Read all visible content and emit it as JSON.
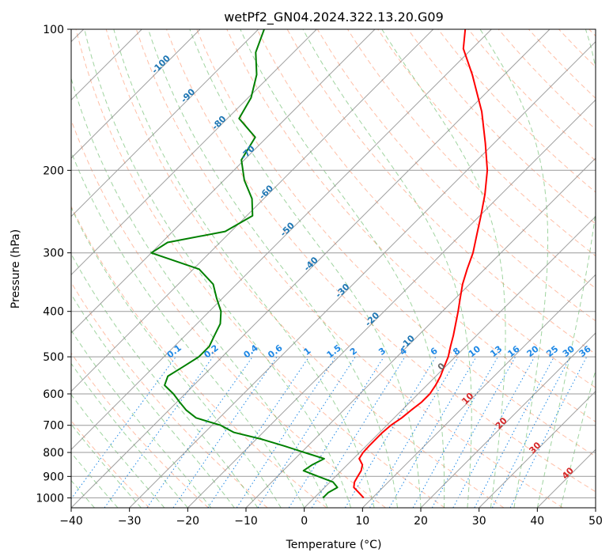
{
  "chart_data": {
    "type": "line",
    "subtype": "skew-T log-P diagram",
    "title": "wetPf2_GN04.2024.322.13.20.G09",
    "xlabel": "Temperature (°C)",
    "ylabel": "Pressure (hPa)",
    "xlim": [
      -40,
      50
    ],
    "ylim": [
      1050,
      100
    ],
    "yscale": "log",
    "skew": "45°",
    "grid": true,
    "legend": "none",
    "xticks": [
      "−40",
      "−30",
      "−20",
      "−10",
      "0",
      "10",
      "20",
      "30",
      "40",
      "50"
    ],
    "yticks": [
      "100",
      "200",
      "300",
      "400",
      "500",
      "600",
      "700",
      "800",
      "900",
      "1000"
    ],
    "series": [
      {
        "role": "temperature",
        "color": "#ff0000",
        "points": [
          [
            8.5,
            1000
          ],
          [
            6.8,
            975
          ],
          [
            5,
            950
          ],
          [
            4.2,
            925
          ],
          [
            3.8,
            900
          ],
          [
            3.4,
            875
          ],
          [
            2.6,
            850
          ],
          [
            1,
            825
          ],
          [
            0.6,
            800
          ],
          [
            0.5,
            775
          ],
          [
            0.5,
            750
          ],
          [
            0.5,
            725
          ],
          [
            0.7,
            700
          ],
          [
            1.3,
            675
          ],
          [
            1.6,
            650
          ],
          [
            2,
            625
          ],
          [
            2,
            600
          ],
          [
            1.5,
            575
          ],
          [
            0.8,
            550
          ],
          [
            -0.2,
            525
          ],
          [
            -1.2,
            500
          ],
          [
            -2.6,
            475
          ],
          [
            -4,
            450
          ],
          [
            -5.6,
            425
          ],
          [
            -7.3,
            400
          ],
          [
            -9.2,
            375
          ],
          [
            -11.2,
            350
          ],
          [
            -13,
            325
          ],
          [
            -14.8,
            300
          ],
          [
            -17.2,
            275
          ],
          [
            -19.8,
            250
          ],
          [
            -22.8,
            225
          ],
          [
            -26.5,
            200
          ],
          [
            -31.5,
            175
          ],
          [
            -37.5,
            150
          ],
          [
            -45.5,
            125
          ],
          [
            -51.5,
            110
          ],
          [
            -54.5,
            100
          ]
        ]
      },
      {
        "role": "dewpoint",
        "color": "#008000",
        "points": [
          [
            1.5,
            1000
          ],
          [
            1.5,
            975
          ],
          [
            2.2,
            950
          ],
          [
            0.5,
            925
          ],
          [
            -3,
            900
          ],
          [
            -6.5,
            875
          ],
          [
            -6,
            850
          ],
          [
            -5,
            825
          ],
          [
            -9.5,
            800
          ],
          [
            -14,
            775
          ],
          [
            -19,
            750
          ],
          [
            -25,
            725
          ],
          [
            -28.5,
            700
          ],
          [
            -34,
            675
          ],
          [
            -37,
            650
          ],
          [
            -39.5,
            625
          ],
          [
            -42,
            600
          ],
          [
            -45,
            575
          ],
          [
            -46,
            550
          ],
          [
            -45,
            525
          ],
          [
            -44,
            500
          ],
          [
            -44,
            475
          ],
          [
            -45,
            450
          ],
          [
            -46,
            425
          ],
          [
            -48,
            400
          ],
          [
            -51,
            375
          ],
          [
            -54,
            350
          ],
          [
            -59,
            325
          ],
          [
            -70,
            300
          ],
          [
            -69,
            285
          ],
          [
            -61,
            270
          ],
          [
            -59,
            250
          ],
          [
            -62,
            230
          ],
          [
            -66.5,
            210
          ],
          [
            -70.5,
            190
          ],
          [
            -72,
            170
          ],
          [
            -78,
            155
          ],
          [
            -79.5,
            140
          ],
          [
            -82.5,
            125
          ],
          [
            -86.5,
            112
          ],
          [
            -89,
            100
          ]
        ]
      }
    ],
    "background_lines": {
      "dry_adiabats": {
        "color": "#ff7f50",
        "style": "dashed"
      },
      "moist_adiabats": {
        "color": "#2ca02c",
        "style": "dashed"
      },
      "mixing_ratio": {
        "color": "#1e88e5",
        "style": "dotted",
        "labels": [
          "0.1",
          "0.2",
          "0.4",
          "0.6",
          "1",
          "1.5",
          "2",
          "3",
          "4",
          "6",
          "8",
          "10",
          "13",
          "16",
          "20",
          "25",
          "30",
          "36"
        ]
      },
      "isotherms": {
        "color": "#777777",
        "style": "solid"
      }
    },
    "annotations": {
      "blue_isotherm_labels": [
        "-100",
        "-90",
        "-80",
        "-70",
        "-60",
        "-50",
        "-40",
        "-30",
        "-20",
        "-10"
      ],
      "gray_label": "0",
      "red_labels": [
        "10",
        "20",
        "30",
        "40"
      ]
    }
  }
}
